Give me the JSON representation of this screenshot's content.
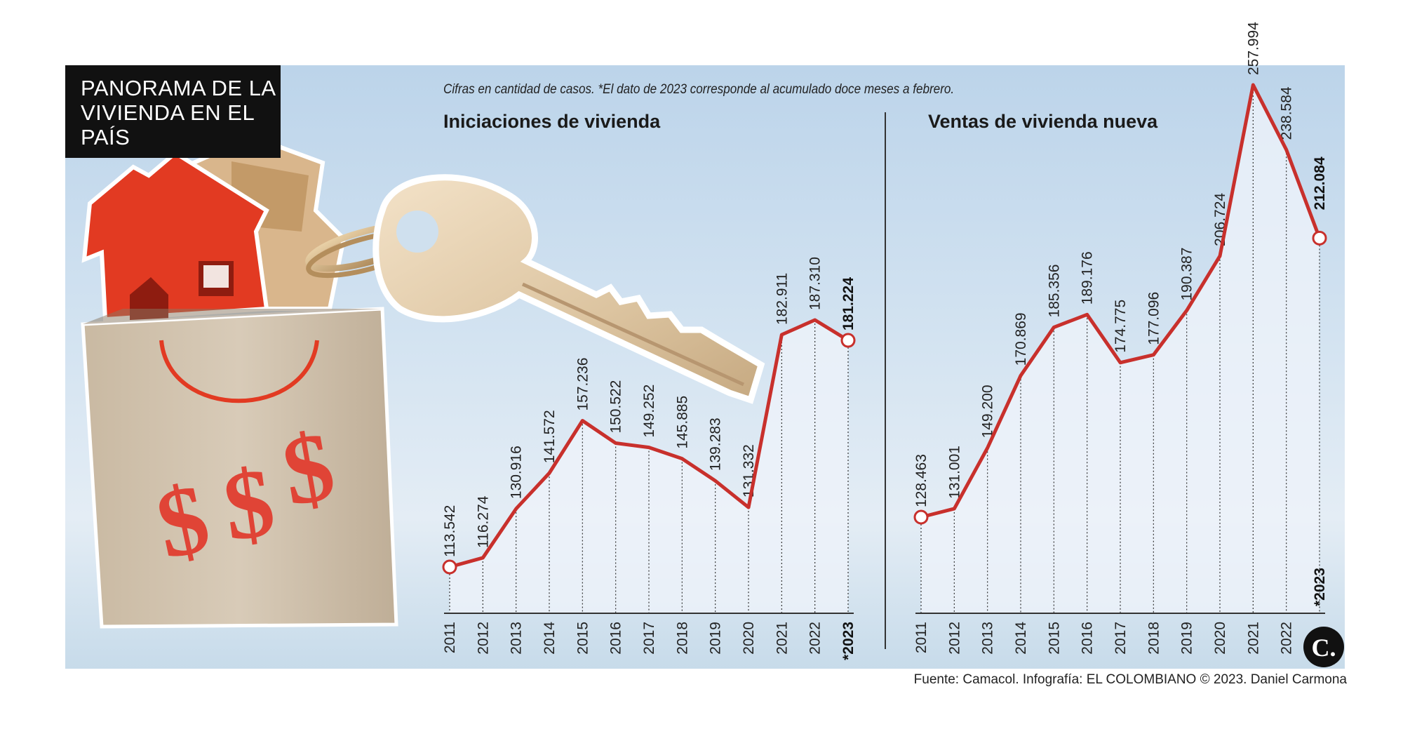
{
  "header": {
    "title": "PANORAMA DE LA VIVIENDA EN EL PAÍS",
    "note": "Cifras en cantidad de casos. *El dato de 2023 corresponde al acumulado doce meses a febrero."
  },
  "footer": {
    "source": "Fuente: Camacol. Infografía: EL COLOMBIANO © 2023. Daniel Carmona",
    "logo_letter": "C."
  },
  "colors": {
    "line": "#c8302c",
    "panel_top": "#bcd4ea",
    "title_box": "#111111"
  },
  "chart_data": [
    {
      "type": "line",
      "title": "Iniciaciones de vivienda",
      "categories": [
        "2011",
        "2012",
        "2013",
        "2014",
        "2015",
        "2016",
        "2017",
        "2018",
        "2019",
        "2020",
        "2021",
        "2022",
        "*2023"
      ],
      "values": [
        113542,
        116274,
        130916,
        141572,
        157236,
        150522,
        149252,
        145885,
        139283,
        131332,
        182911,
        187310,
        181224
      ],
      "labels": [
        "113.542",
        "116.274",
        "130.916",
        "141.572",
        "157.236",
        "150.522",
        "149.252",
        "145.885",
        "139.283",
        "131.332",
        "182.911",
        "187.310",
        "181.224"
      ],
      "grid": false,
      "legend": "none"
    },
    {
      "type": "line",
      "title": "Ventas de vivienda nueva",
      "categories": [
        "2011",
        "2012",
        "2013",
        "2014",
        "2015",
        "2016",
        "2017",
        "2018",
        "2019",
        "2020",
        "2021",
        "2022",
        "*2023"
      ],
      "values": [
        128463,
        131001,
        149200,
        170869,
        185356,
        189176,
        174775,
        177096,
        190387,
        206724,
        257994,
        238584,
        212084
      ],
      "labels": [
        "128.463",
        "131.001",
        "149.200",
        "170.869",
        "185.356",
        "189.176",
        "174.775",
        "177.096",
        "190.387",
        "206.724",
        "257.994",
        "238.584",
        "212.084"
      ],
      "grid": false,
      "legend": "none"
    }
  ]
}
